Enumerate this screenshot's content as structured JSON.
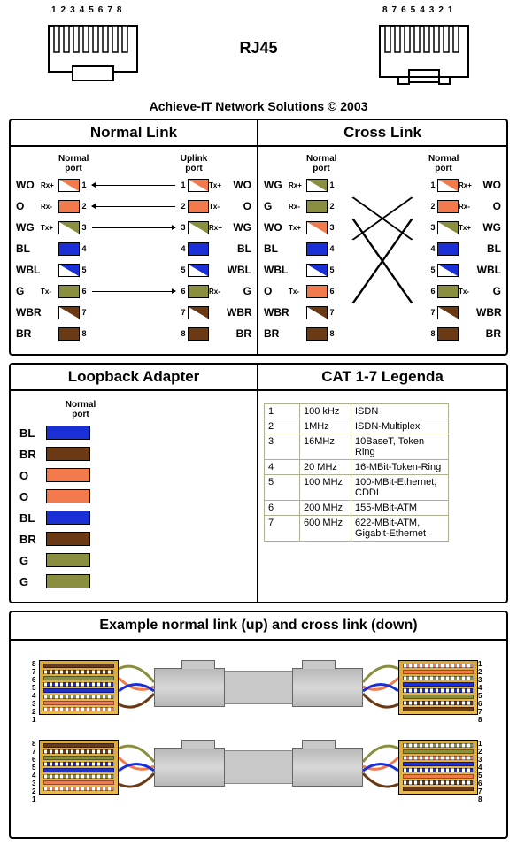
{
  "colors": {
    "O": "#f27a4d",
    "WO_stripe": "#f27a4d",
    "G": "#8a8f3f",
    "WG_stripe": "#8a8f3f",
    "BL": "#1a2fd6",
    "WBL_stripe": "#1a2fd6",
    "BR": "#6b3a14",
    "WBR_stripe": "#6b3a14",
    "white": "#ffffff",
    "panel_border": "#000000",
    "text": "#000000",
    "legenda_border": "#b0b090",
    "boot": "#c8c8c8",
    "plug": "#e0b04a"
  },
  "rj45_label": "RJ45",
  "pin_labels_ltr": [
    "1",
    "2",
    "3",
    "4",
    "5",
    "6",
    "7",
    "8"
  ],
  "pin_labels_rtl": [
    "8",
    "7",
    "6",
    "5",
    "4",
    "3",
    "2",
    "1"
  ],
  "attribution": "Achieve-IT Network Solutions © 2003",
  "sections": {
    "normal": {
      "title": "Normal Link",
      "left_port": "Normal\nport",
      "right_port": "Uplink\nport",
      "left": [
        {
          "code": "WO",
          "sig": "Rx+",
          "color": "WO",
          "pin": 1
        },
        {
          "code": "O",
          "sig": "Rx-",
          "color": "O",
          "pin": 2
        },
        {
          "code": "WG",
          "sig": "Tx+",
          "color": "WG",
          "pin": 3
        },
        {
          "code": "BL",
          "sig": "",
          "color": "BL",
          "pin": 4
        },
        {
          "code": "WBL",
          "sig": "",
          "color": "WBL",
          "pin": 5
        },
        {
          "code": "G",
          "sig": "Tx-",
          "color": "G",
          "pin": 6
        },
        {
          "code": "WBR",
          "sig": "",
          "color": "WBR",
          "pin": 7
        },
        {
          "code": "BR",
          "sig": "",
          "color": "BR",
          "pin": 8
        }
      ],
      "right": [
        {
          "code": "WO",
          "sig": "Tx+",
          "color": "WO",
          "pin": 1
        },
        {
          "code": "O",
          "sig": "Tx-",
          "color": "O",
          "pin": 2
        },
        {
          "code": "WG",
          "sig": "Rx+",
          "color": "WG",
          "pin": 3
        },
        {
          "code": "BL",
          "sig": "",
          "color": "BL",
          "pin": 4
        },
        {
          "code": "WBL",
          "sig": "",
          "color": "WBL",
          "pin": 5
        },
        {
          "code": "G",
          "sig": "Rx-",
          "color": "G",
          "pin": 6
        },
        {
          "code": "WBR",
          "sig": "",
          "color": "WBR",
          "pin": 7
        },
        {
          "code": "BR",
          "sig": "",
          "color": "BR",
          "pin": 8
        }
      ],
      "arrows": [
        "l",
        "l",
        "r",
        "",
        "",
        "r",
        "",
        ""
      ]
    },
    "cross": {
      "title": "Cross Link",
      "left_port": "Normal\nport",
      "right_port": "Normal\nport",
      "left": [
        {
          "code": "WG",
          "sig": "Rx+",
          "color": "WG",
          "pin": 1
        },
        {
          "code": "G",
          "sig": "Rx-",
          "color": "G",
          "pin": 2
        },
        {
          "code": "WO",
          "sig": "Tx+",
          "color": "WO",
          "pin": 3
        },
        {
          "code": "BL",
          "sig": "",
          "color": "BL",
          "pin": 4
        },
        {
          "code": "WBL",
          "sig": "",
          "color": "WBL",
          "pin": 5
        },
        {
          "code": "O",
          "sig": "Tx-",
          "color": "O",
          "pin": 6
        },
        {
          "code": "WBR",
          "sig": "",
          "color": "WBR",
          "pin": 7
        },
        {
          "code": "BR",
          "sig": "",
          "color": "BR",
          "pin": 8
        }
      ],
      "right": [
        {
          "code": "WO",
          "sig": "Rx+",
          "color": "WO",
          "pin": 1
        },
        {
          "code": "O",
          "sig": "Rx-",
          "color": "O",
          "pin": 2
        },
        {
          "code": "WG",
          "sig": "Tx+",
          "color": "WG",
          "pin": 3
        },
        {
          "code": "BL",
          "sig": "",
          "color": "BL",
          "pin": 4
        },
        {
          "code": "WBL",
          "sig": "",
          "color": "WBL",
          "pin": 5
        },
        {
          "code": "G",
          "sig": "Tx-",
          "color": "G",
          "pin": 6
        },
        {
          "code": "WBR",
          "sig": "",
          "color": "WBR",
          "pin": 7
        },
        {
          "code": "BR",
          "sig": "",
          "color": "BR",
          "pin": 8
        }
      ],
      "cross_map": [
        [
          1,
          3
        ],
        [
          2,
          6
        ],
        [
          3,
          1
        ],
        [
          6,
          2
        ]
      ]
    },
    "loopback": {
      "title": "Loopback Adapter",
      "port": "Normal\nport",
      "rows": [
        {
          "code": "BL",
          "color": "BL"
        },
        {
          "code": "BR",
          "color": "BR"
        },
        {
          "code": "O",
          "color": "O"
        },
        {
          "code": "O",
          "color": "O"
        },
        {
          "code": "BL",
          "color": "BL"
        },
        {
          "code": "BR",
          "color": "BR"
        },
        {
          "code": "G",
          "color": "G"
        },
        {
          "code": "G",
          "color": "G"
        }
      ]
    },
    "legenda": {
      "title": "CAT 1-7 Legenda",
      "rows": [
        [
          "1",
          "100 kHz",
          "ISDN"
        ],
        [
          "2",
          "1MHz",
          "ISDN-Multiplex"
        ],
        [
          "3",
          "16MHz",
          "10BaseT, Token Ring"
        ],
        [
          "4",
          "20 MHz",
          "16-MBit-Token-Ring"
        ],
        [
          "5",
          "100 MHz",
          "100-MBit-Ethernet, CDDI"
        ],
        [
          "6",
          "200 MHz",
          "155-MBit-ATM"
        ],
        [
          "7",
          "600 MHz",
          "622-MBit-ATM, Gigabit-Ethernet"
        ]
      ]
    },
    "example": {
      "title": "Example normal link (up) and cross link (down)",
      "assemblies": [
        {
          "left_pins_order": "rtl",
          "right_pins_order": "ltr",
          "left_colors": [
            "BR",
            "WBR",
            "G",
            "WBL",
            "BL",
            "WG",
            "O",
            "WO"
          ],
          "right_colors": [
            "WO",
            "O",
            "WG",
            "BL",
            "WBL",
            "G",
            "WBR",
            "BR"
          ]
        },
        {
          "left_pins_order": "rtl",
          "right_pins_order": "ltr",
          "left_colors": [
            "BR",
            "WBR",
            "G",
            "WBL",
            "BL",
            "WG",
            "O",
            "WO"
          ],
          "right_colors": [
            "WG",
            "G",
            "WO",
            "BL",
            "WBL",
            "O",
            "WBR",
            "BR"
          ]
        }
      ]
    }
  }
}
